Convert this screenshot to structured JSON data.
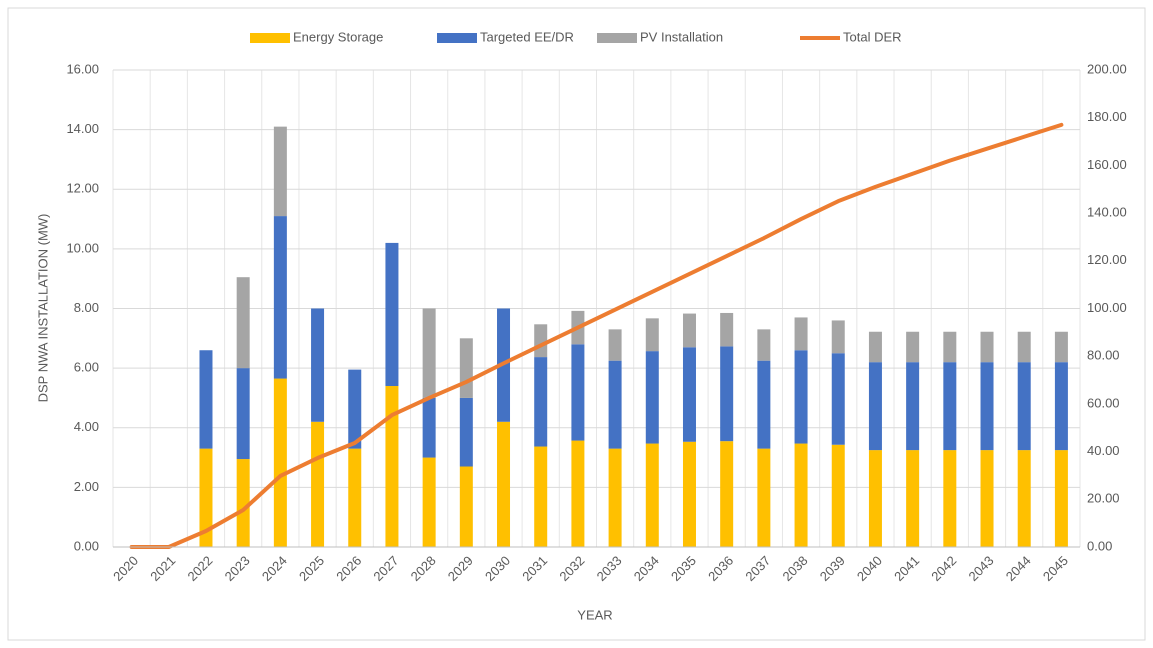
{
  "chart_data": {
    "type": "bar",
    "x_label": "YEAR",
    "y_label": "DSP NWA INSTALLATION (MW)",
    "categories": [
      "2020",
      "2021",
      "2022",
      "2023",
      "2024",
      "2025",
      "2026",
      "2027",
      "2028",
      "2029",
      "2030",
      "2031",
      "2032",
      "2033",
      "2034",
      "2035",
      "2036",
      "2037",
      "2038",
      "2039",
      "2040",
      "2041",
      "2042",
      "2043",
      "2044",
      "2045"
    ],
    "series": [
      {
        "name": "Energy Storage",
        "color": "#FFC000",
        "stacked": true,
        "values": [
          0,
          0,
          3.3,
          2.95,
          5.65,
          4.2,
          3.3,
          5.4,
          3.0,
          2.7,
          4.2,
          3.37,
          3.57,
          3.3,
          3.47,
          3.53,
          3.55,
          3.3,
          3.47,
          3.43,
          3.25,
          3.25,
          3.25,
          3.25,
          3.25,
          3.25
        ]
      },
      {
        "name": "Targeted EE/DR",
        "color": "#4472C4",
        "stacked": true,
        "values": [
          0,
          0,
          3.3,
          3.05,
          5.45,
          3.8,
          2.65,
          4.8,
          2.0,
          2.3,
          3.8,
          3.0,
          3.23,
          2.95,
          3.1,
          3.17,
          3.18,
          2.95,
          3.13,
          3.07,
          2.95,
          2.95,
          2.95,
          2.95,
          2.95,
          2.95
        ]
      },
      {
        "name": "PV Installation",
        "color": "#A5A5A5",
        "stacked": true,
        "values": [
          0,
          0,
          0,
          3.05,
          3.0,
          0,
          0,
          0,
          3.0,
          2.0,
          0,
          1.1,
          1.12,
          1.05,
          1.1,
          1.13,
          1.12,
          1.05,
          1.1,
          1.1,
          1.02,
          1.02,
          1.02,
          1.02,
          1.02,
          1.02
        ]
      },
      {
        "name": "Total DER",
        "color": "#ED7D31",
        "type": "line",
        "axis": "y2",
        "values": [
          0,
          0,
          6.7,
          15.5,
          29.8,
          37.3,
          43.6,
          55.3,
          62.5,
          69.2,
          77,
          84.5,
          92,
          99.5,
          107,
          114.5,
          122,
          129.5,
          137.5,
          145,
          151,
          156.5,
          162,
          167,
          172,
          177
        ]
      }
    ],
    "ylim": [
      0,
      16
    ],
    "yticks": [
      {
        "value": 0,
        "label": "0.00"
      },
      {
        "value": 2,
        "label": "2.00"
      },
      {
        "value": 4,
        "label": "4.00"
      },
      {
        "value": 6,
        "label": "6.00"
      },
      {
        "value": 8,
        "label": "8.00"
      },
      {
        "value": 10,
        "label": "10.00"
      },
      {
        "value": 12,
        "label": "12.00"
      },
      {
        "value": 14,
        "label": "14.00"
      },
      {
        "value": 16,
        "label": "16.00"
      }
    ],
    "y2lim": [
      0,
      200
    ],
    "y2ticks": [
      {
        "value": 0,
        "label": "0.00"
      },
      {
        "value": 20,
        "label": "20.00"
      },
      {
        "value": 40,
        "label": "40.00"
      },
      {
        "value": 60,
        "label": "60.00"
      },
      {
        "value": 80,
        "label": "80.00"
      },
      {
        "value": 100,
        "label": "100.00"
      },
      {
        "value": 120,
        "label": "120.00"
      },
      {
        "value": 140,
        "label": "140.00"
      },
      {
        "value": 160,
        "label": "160.00"
      },
      {
        "value": 180,
        "label": "180.00"
      },
      {
        "value": 200,
        "label": "200.00"
      }
    ],
    "grid": true,
    "legend": "top"
  }
}
